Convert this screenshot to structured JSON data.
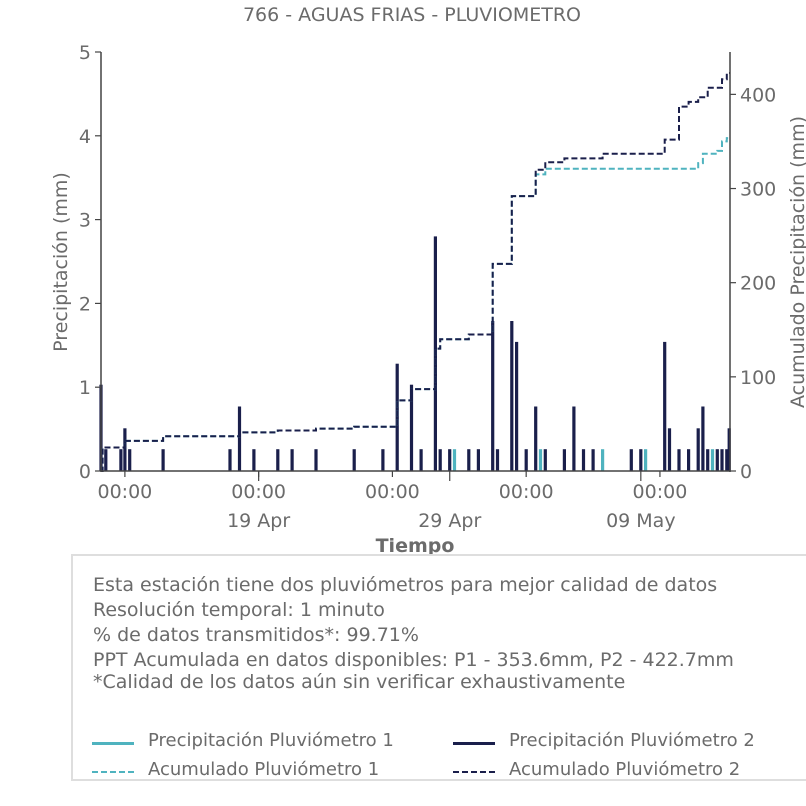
{
  "chart_data": {
    "type": "bar",
    "title": "766 - AGUAS FRIAS - PLUVIOMETRO",
    "xlabel": "Tiempo",
    "ylabel": "Precipitación (mm)",
    "y2label": "Acumulado Precipitación (mm)",
    "ylim": [
      0,
      5
    ],
    "y2lim": [
      0,
      445
    ],
    "yticks": [
      "0",
      "1",
      "2",
      "3",
      "4",
      "5"
    ],
    "y2ticks": [
      "0",
      "100",
      "200",
      "300",
      "400"
    ],
    "xlim": [
      "2024-04-10 18:00",
      "2024-05-13 16:00"
    ],
    "xticks_time": [
      "00:00",
      "00:00",
      "00:00",
      "00:00",
      "00:00"
    ],
    "xticks_time_dates": [
      "2024-04-12 00:00",
      "2024-04-19 00:00",
      "2024-04-26 00:00",
      "2024-05-03 00:00",
      "2024-05-10 00:00"
    ],
    "xticks_date": [
      "19 Apr",
      "29 Apr",
      "09 May"
    ],
    "xticks_date_dates": [
      "2024-04-19 00:00",
      "2024-04-29 00:00",
      "2024-05-09 00:00"
    ],
    "grid": false,
    "series": [
      {
        "name": "Precipitación Pluviómetro 2",
        "kind": "bars",
        "color": "#1a1f4b",
        "points": [
          [
            "2024-04-10 18:00",
            1.03
          ],
          [
            "2024-04-11 00:00",
            0.26
          ],
          [
            "2024-04-11 19:00",
            0.26
          ],
          [
            "2024-04-12 00:00",
            0.51
          ],
          [
            "2024-04-12 06:00",
            0.26
          ],
          [
            "2024-04-14 00:00",
            0.26
          ],
          [
            "2024-04-17 12:00",
            0.26
          ],
          [
            "2024-04-18 00:00",
            0.77
          ],
          [
            "2024-04-18 18:00",
            0.26
          ],
          [
            "2024-04-20 00:00",
            0.26
          ],
          [
            "2024-04-20 18:00",
            0.26
          ],
          [
            "2024-04-22 00:00",
            0.26
          ],
          [
            "2024-04-24 00:00",
            0.26
          ],
          [
            "2024-04-25 12:00",
            0.26
          ],
          [
            "2024-04-26 06:00",
            1.28
          ],
          [
            "2024-04-27 00:00",
            1.03
          ],
          [
            "2024-04-27 12:00",
            0.26
          ],
          [
            "2024-04-28 06:00",
            2.8
          ],
          [
            "2024-04-28 12:00",
            0.26
          ],
          [
            "2024-04-29 00:00",
            0.26
          ],
          [
            "2024-04-30 00:00",
            0.26
          ],
          [
            "2024-04-30 12:00",
            0.26
          ],
          [
            "2024-05-01 06:00",
            1.79
          ],
          [
            "2024-05-01 12:00",
            0.26
          ],
          [
            "2024-05-02 06:00",
            1.79
          ],
          [
            "2024-05-02 12:00",
            1.54
          ],
          [
            "2024-05-03 00:00",
            0.26
          ],
          [
            "2024-05-03 12:00",
            0.77
          ],
          [
            "2024-05-04 00:00",
            0.26
          ],
          [
            "2024-05-05 00:00",
            0.26
          ],
          [
            "2024-05-05 12:00",
            0.77
          ],
          [
            "2024-05-06 00:00",
            0.26
          ],
          [
            "2024-05-06 12:00",
            0.26
          ],
          [
            "2024-05-08 12:00",
            0.26
          ],
          [
            "2024-05-09 00:00",
            0.26
          ],
          [
            "2024-05-10 06:00",
            1.54
          ],
          [
            "2024-05-10 12:00",
            0.51
          ],
          [
            "2024-05-11 00:00",
            0.26
          ],
          [
            "2024-05-11 12:00",
            0.26
          ],
          [
            "2024-05-12 00:00",
            0.51
          ],
          [
            "2024-05-12 06:00",
            0.77
          ],
          [
            "2024-05-12 12:00",
            0.26
          ],
          [
            "2024-05-13 00:00",
            0.26
          ],
          [
            "2024-05-13 06:00",
            0.26
          ],
          [
            "2024-05-13 12:00",
            0.26
          ],
          [
            "2024-05-13 15:00",
            0.51
          ]
        ]
      },
      {
        "name": "Precipitación Pluviómetro 1",
        "kind": "bars",
        "color": "#4fb3bf",
        "points": [
          [
            "2024-04-29 06:00",
            0.26
          ],
          [
            "2024-05-03 18:00",
            0.26
          ],
          [
            "2024-05-07 00:00",
            0.26
          ],
          [
            "2024-05-09 06:00",
            0.26
          ],
          [
            "2024-05-12 18:00",
            0.26
          ]
        ]
      },
      {
        "name": "Acumulado Pluviómetro 1",
        "kind": "step",
        "color": "#4fb3bf",
        "points": [
          [
            "2024-04-10 18:00",
            0
          ],
          [
            "2024-04-10 20:00",
            25
          ],
          [
            "2024-04-12 00:00",
            32
          ],
          [
            "2024-04-14 00:00",
            37
          ],
          [
            "2024-04-18 00:00",
            41
          ],
          [
            "2024-04-20 00:00",
            43
          ],
          [
            "2024-04-22 00:00",
            45
          ],
          [
            "2024-04-24 00:00",
            47
          ],
          [
            "2024-04-26 06:00",
            75
          ],
          [
            "2024-04-27 00:00",
            87
          ],
          [
            "2024-04-28 06:00",
            130
          ],
          [
            "2024-04-28 12:00",
            140
          ],
          [
            "2024-04-30 00:00",
            145
          ],
          [
            "2024-05-01 06:00",
            220
          ],
          [
            "2024-05-02 06:00",
            292
          ],
          [
            "2024-05-03 12:00",
            315
          ],
          [
            "2024-05-04 00:00",
            321
          ],
          [
            "2024-05-07 00:00",
            321
          ],
          [
            "2024-05-12 00:00",
            327
          ],
          [
            "2024-05-12 06:00",
            337
          ],
          [
            "2024-05-13 00:00",
            340
          ],
          [
            "2024-05-13 06:00",
            350
          ],
          [
            "2024-05-13 12:00",
            353.6
          ],
          [
            "2024-05-13 16:00",
            353.6
          ]
        ]
      },
      {
        "name": "Acumulado Pluviómetro 2",
        "kind": "step",
        "color": "#1a1f4b",
        "points": [
          [
            "2024-04-10 18:00",
            0
          ],
          [
            "2024-04-10 20:00",
            25
          ],
          [
            "2024-04-12 00:00",
            32
          ],
          [
            "2024-04-14 00:00",
            37
          ],
          [
            "2024-04-18 00:00",
            41
          ],
          [
            "2024-04-20 00:00",
            43
          ],
          [
            "2024-04-22 00:00",
            45
          ],
          [
            "2024-04-24 00:00",
            47
          ],
          [
            "2024-04-26 06:00",
            75
          ],
          [
            "2024-04-27 00:00",
            87
          ],
          [
            "2024-04-28 06:00",
            130
          ],
          [
            "2024-04-28 12:00",
            140
          ],
          [
            "2024-04-30 00:00",
            145
          ],
          [
            "2024-05-01 06:00",
            220
          ],
          [
            "2024-05-02 06:00",
            292
          ],
          [
            "2024-05-03 12:00",
            320
          ],
          [
            "2024-05-04 00:00",
            328
          ],
          [
            "2024-05-05 00:00",
            332
          ],
          [
            "2024-05-07 00:00",
            337
          ],
          [
            "2024-05-10 06:00",
            352
          ],
          [
            "2024-05-11 00:00",
            387
          ],
          [
            "2024-05-11 12:00",
            392
          ],
          [
            "2024-05-12 00:00",
            397
          ],
          [
            "2024-05-12 12:00",
            407
          ],
          [
            "2024-05-13 06:00",
            416
          ],
          [
            "2024-05-13 12:00",
            422.7
          ],
          [
            "2024-05-13 16:00",
            422.7
          ]
        ]
      }
    ]
  },
  "info": {
    "line1": "Esta estación tiene dos pluviómetros para mejor calidad de datos",
    "line2": "Resolución temporal: 1 minuto",
    "line3": "% de datos transmitidos*: 99.71%",
    "line4": "PPT Acumulada en datos disponibles: P1 - 353.6mm, P2 - 422.7mm",
    "line5": "*Calidad de los datos aún sin verificar exhaustivamente"
  },
  "legend": {
    "p1": "Precipitación Pluviómetro 1",
    "p2": "Precipitación Pluviómetro 2",
    "a1": "Acumulado Pluviómetro 1",
    "a2": "Acumulado Pluviómetro 2",
    "color_p1": "#4fb3bf",
    "color_p2": "#1a1f4b"
  }
}
